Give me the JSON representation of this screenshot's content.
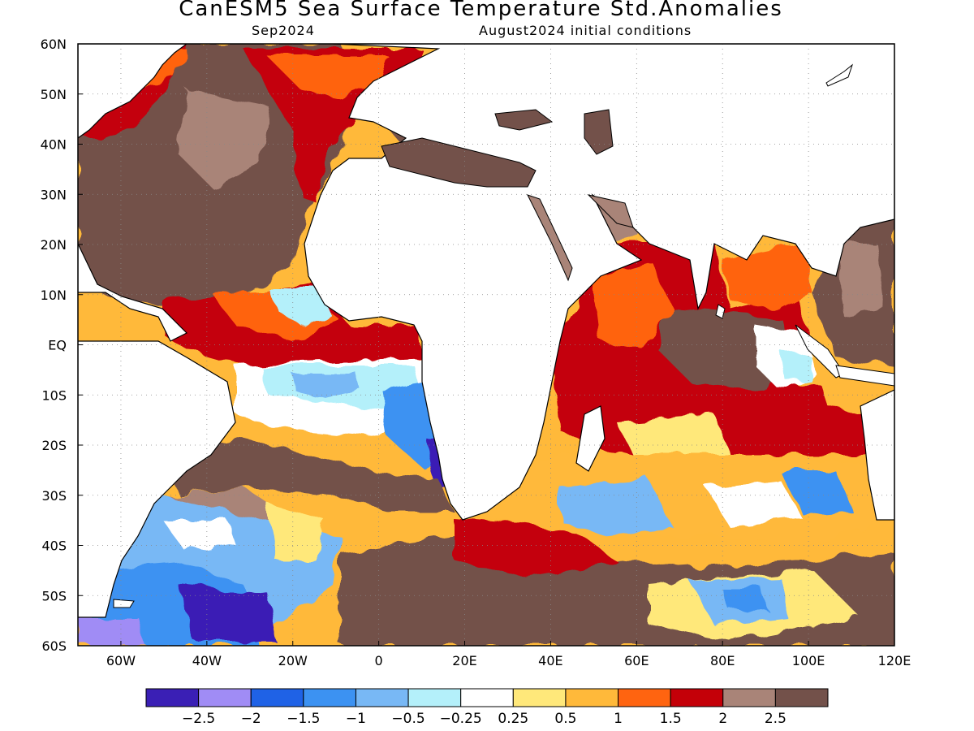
{
  "title": "CanESM5 Sea Surface Temperature Std.Anomalies",
  "subtitle_left": "Sep2024",
  "subtitle_right": "August2024 initial conditions",
  "map": {
    "lon_range": [
      -70,
      120
    ],
    "lat_range": [
      -60,
      60
    ],
    "lon_ticks": [
      {
        "value": -60,
        "label": "60W"
      },
      {
        "value": -40,
        "label": "40W"
      },
      {
        "value": -20,
        "label": "20W"
      },
      {
        "value": 0,
        "label": "0"
      },
      {
        "value": 20,
        "label": "20E"
      },
      {
        "value": 40,
        "label": "40E"
      },
      {
        "value": 60,
        "label": "60E"
      },
      {
        "value": 80,
        "label": "80E"
      },
      {
        "value": 100,
        "label": "100E"
      },
      {
        "value": 120,
        "label": "120E"
      }
    ],
    "lat_ticks": [
      {
        "value": 60,
        "label": "60N"
      },
      {
        "value": 50,
        "label": "50N"
      },
      {
        "value": 40,
        "label": "40N"
      },
      {
        "value": 30,
        "label": "30N"
      },
      {
        "value": 20,
        "label": "20N"
      },
      {
        "value": 10,
        "label": "10N"
      },
      {
        "value": 0,
        "label": "EQ"
      },
      {
        "value": -10,
        "label": "10S"
      },
      {
        "value": -20,
        "label": "20S"
      },
      {
        "value": -30,
        "label": "30S"
      },
      {
        "value": -40,
        "label": "40S"
      },
      {
        "value": -50,
        "label": "50S"
      },
      {
        "value": -60,
        "label": "60S"
      }
    ],
    "grid": "dotted"
  },
  "legend": {
    "colors": [
      "#3a1fb5",
      "#a08cf5",
      "#1f62e6",
      "#3c92f2",
      "#78b8f5",
      "#b4f0fa",
      "#ffffff",
      "#ffe87a",
      "#ffb93a",
      "#ff6410",
      "#c40008",
      "#a98478",
      "#73514a"
    ],
    "labels": [
      "−2.5",
      "−2",
      "−1.5",
      "−1",
      "−0.5",
      "−0.25",
      "0.25",
      "0.5",
      "1",
      "1.5",
      "2",
      "2.5"
    ]
  }
}
